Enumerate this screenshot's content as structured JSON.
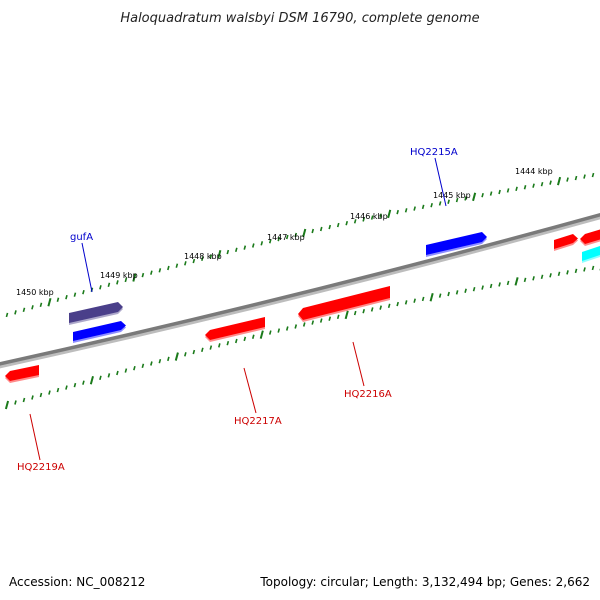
{
  "title": "Haloquadratum walsbyi DSM 16790, complete genome",
  "footer": {
    "accession": "Accession: NC_008212",
    "topology": "Topology: circular; Length: 3,132,494 bp; Genes: 2,662"
  },
  "colors": {
    "backbone": "#808080",
    "tick": "#1a7a1a",
    "forward_gene": "#0000ff",
    "reverse_gene": "#ff0000",
    "rna_gene": "#00ffff",
    "operon_gene": "#4a3f8a",
    "label_blue": "#0000cc",
    "label_red": "#cc0000"
  },
  "scale_labels": [
    "1444 kbp",
    "1445 kbp",
    "1446 kbp",
    "1447 kbp",
    "1448 kbp",
    "1449 kbp",
    "1450 kbp"
  ],
  "gene_labels": [
    {
      "text": "HQ2215A",
      "color": "label_blue"
    },
    {
      "text": "gufA",
      "color": "label_blue"
    },
    {
      "text": "HQ2216A",
      "color": "label_red"
    },
    {
      "text": "HQ2217A",
      "color": "label_red"
    },
    {
      "text": "HQ2219A",
      "color": "label_red"
    }
  ]
}
